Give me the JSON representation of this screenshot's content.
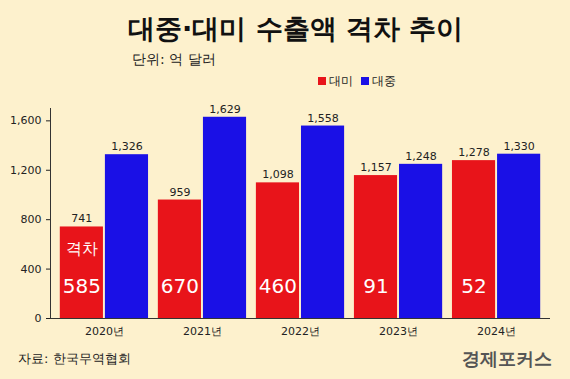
{
  "chart_data": {
    "type": "bar",
    "title": "대중·대미 수출액 격차 추이",
    "subtitle": "단위: 억 달러",
    "source": "자료: 한국무역협회",
    "credit": "경제포커스",
    "categories": [
      "2020년",
      "2021년",
      "2022년",
      "2023년",
      "2024년"
    ],
    "series": [
      {
        "name": "대미",
        "color": "#e8141a",
        "values": [
          741,
          959,
          1098,
          1157,
          1278
        ],
        "value_labels": [
          "741",
          "959",
          "1,098",
          "1,157",
          "1,278"
        ]
      },
      {
        "name": "대중",
        "color": "#1a10e6",
        "values": [
          1326,
          1629,
          1558,
          1248,
          1330
        ],
        "value_labels": [
          "1,326",
          "1,629",
          "1,558",
          "1,248",
          "1,330"
        ]
      }
    ],
    "gap": {
      "label": "격차",
      "values": [
        585,
        670,
        460,
        91,
        52
      ]
    },
    "ylim": [
      0,
      1700
    ],
    "yticks": [
      0,
      400,
      800,
      {
        "value": 1200,
        "label": "1,200"
      },
      {
        "value": 1600,
        "label": "1,600"
      }
    ],
    "grid": false,
    "legend": "top-right",
    "data_labels": true
  }
}
